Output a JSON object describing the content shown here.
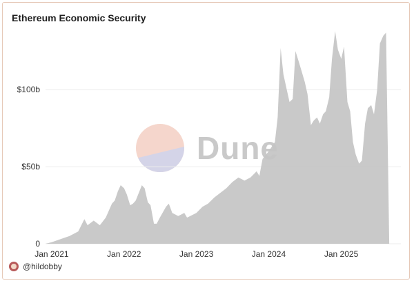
{
  "chart_data": {
    "type": "area",
    "title": "Ethereum Economic Security",
    "xlabel": "",
    "ylabel": "",
    "x_ticks": [
      "Jan 2021",
      "Jan 2022",
      "Jan 2023",
      "Jan 2024",
      "Jan 2025"
    ],
    "y_ticks": [
      "0",
      "$50b",
      "$100b"
    ],
    "y_tick_values": [
      0,
      50,
      100
    ],
    "ylim": [
      0,
      143
    ],
    "xlim": [
      "2020-12",
      "2025-10"
    ],
    "grid": "horizontal",
    "color": "#c4c4c4",
    "series": [
      {
        "points": [
          [
            "2020-12-01",
            0
          ],
          [
            "2021-01-01",
            1
          ],
          [
            "2021-02-15",
            3
          ],
          [
            "2021-04-01",
            5
          ],
          [
            "2021-05-15",
            8
          ],
          [
            "2021-06-15",
            16
          ],
          [
            "2021-07-01",
            12
          ],
          [
            "2021-08-01",
            15
          ],
          [
            "2021-09-01",
            12
          ],
          [
            "2021-10-01",
            17
          ],
          [
            "2021-11-01",
            26
          ],
          [
            "2021-11-15",
            28
          ],
          [
            "2021-12-01",
            34
          ],
          [
            "2021-12-15",
            38
          ],
          [
            "2022-01-01",
            36
          ],
          [
            "2022-01-15",
            32
          ],
          [
            "2022-02-01",
            25
          ],
          [
            "2022-02-15",
            26
          ],
          [
            "2022-03-01",
            28
          ],
          [
            "2022-04-01",
            38
          ],
          [
            "2022-04-15",
            36
          ],
          [
            "2022-05-01",
            27
          ],
          [
            "2022-05-15",
            25
          ],
          [
            "2022-06-01",
            13
          ],
          [
            "2022-06-15",
            13
          ],
          [
            "2022-07-01",
            17
          ],
          [
            "2022-08-01",
            24
          ],
          [
            "2022-08-15",
            26
          ],
          [
            "2022-09-01",
            20
          ],
          [
            "2022-10-01",
            18
          ],
          [
            "2022-11-01",
            20
          ],
          [
            "2022-11-15",
            17
          ],
          [
            "2022-12-01",
            18
          ],
          [
            "2023-01-01",
            20
          ],
          [
            "2023-02-01",
            24
          ],
          [
            "2023-03-01",
            26
          ],
          [
            "2023-04-01",
            30
          ],
          [
            "2023-05-01",
            33
          ],
          [
            "2023-06-01",
            36
          ],
          [
            "2023-07-01",
            40
          ],
          [
            "2023-08-01",
            43
          ],
          [
            "2023-09-01",
            41
          ],
          [
            "2023-10-01",
            43
          ],
          [
            "2023-11-01",
            47
          ],
          [
            "2023-11-15",
            44
          ],
          [
            "2023-12-01",
            55
          ],
          [
            "2024-01-01",
            60
          ],
          [
            "2024-02-01",
            66
          ],
          [
            "2024-02-15",
            82
          ],
          [
            "2024-03-01",
            127
          ],
          [
            "2024-03-15",
            110
          ],
          [
            "2024-04-01",
            100
          ],
          [
            "2024-04-15",
            92
          ],
          [
            "2024-05-01",
            94
          ],
          [
            "2024-05-15",
            125
          ],
          [
            "2024-06-01",
            118
          ],
          [
            "2024-06-15",
            112
          ],
          [
            "2024-07-01",
            105
          ],
          [
            "2024-07-15",
            97
          ],
          [
            "2024-08-01",
            77
          ],
          [
            "2024-08-15",
            80
          ],
          [
            "2024-09-01",
            82
          ],
          [
            "2024-09-15",
            78
          ],
          [
            "2024-10-01",
            84
          ],
          [
            "2024-10-15",
            86
          ],
          [
            "2024-11-01",
            95
          ],
          [
            "2024-11-15",
            120
          ],
          [
            "2024-12-01",
            138
          ],
          [
            "2024-12-15",
            126
          ],
          [
            "2025-01-01",
            120
          ],
          [
            "2025-01-15",
            128
          ],
          [
            "2025-02-01",
            92
          ],
          [
            "2025-02-15",
            86
          ],
          [
            "2025-03-01",
            66
          ],
          [
            "2025-03-15",
            58
          ],
          [
            "2025-04-01",
            52
          ],
          [
            "2025-04-15",
            54
          ],
          [
            "2025-05-01",
            78
          ],
          [
            "2025-05-15",
            88
          ],
          [
            "2025-06-01",
            90
          ],
          [
            "2025-06-15",
            84
          ],
          [
            "2025-07-01",
            100
          ],
          [
            "2025-07-15",
            130
          ],
          [
            "2025-08-01",
            135
          ],
          [
            "2025-08-15",
            137
          ],
          [
            "2025-08-31",
            0
          ]
        ]
      }
    ]
  },
  "watermark": {
    "text": "Dune"
  },
  "footer": {
    "handle": "@hildobby"
  }
}
